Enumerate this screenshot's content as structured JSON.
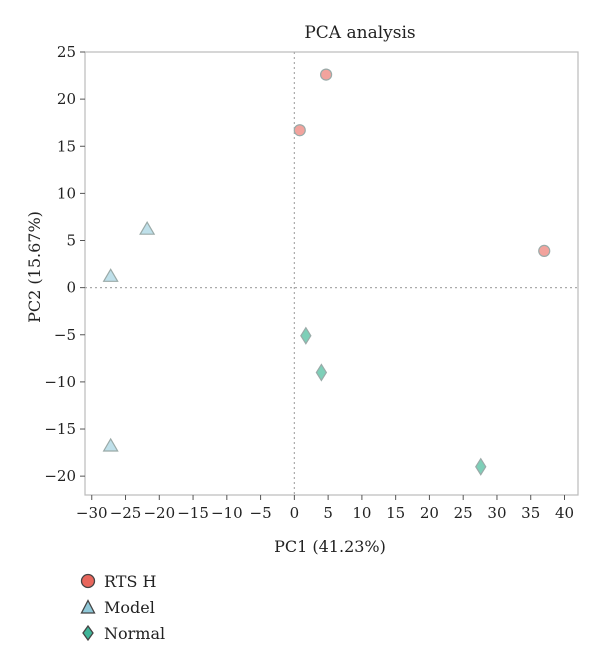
{
  "chart_data": {
    "type": "scatter",
    "title": "PCA analysis",
    "xlabel": "PC1 (41.23%)",
    "ylabel": "PC2 (15.67%)",
    "xlim": [
      -31,
      42
    ],
    "ylim": [
      -22,
      25
    ],
    "xticks": [
      -30,
      -25,
      -20,
      -15,
      -10,
      -5,
      0,
      5,
      10,
      15,
      20,
      25,
      30,
      35,
      40
    ],
    "yticks": [
      -20,
      -15,
      -10,
      -5,
      0,
      5,
      10,
      15,
      20,
      25
    ],
    "xtick_labels": [
      "−30",
      "−25",
      "−20",
      "−15",
      "−10",
      "−5",
      "0",
      "5",
      "10",
      "15",
      "20",
      "25",
      "30",
      "35",
      "40"
    ],
    "ytick_labels": [
      "−20",
      "−15",
      "−10",
      "−5",
      "0",
      "5",
      "10",
      "15",
      "20",
      "25"
    ],
    "grid": false,
    "zero_lines": true,
    "legend_position": "bottom-left",
    "series": [
      {
        "name": "RTS H",
        "marker": "circle",
        "fill": "#f2a39d",
        "legend_fill": "#e8665c",
        "points": [
          [
            0.8,
            16.7
          ],
          [
            4.7,
            22.6
          ],
          [
            37.0,
            3.9
          ]
        ]
      },
      {
        "name": "Model",
        "marker": "triangle",
        "fill": "#bfe0ea",
        "legend_fill": "#8fc8d8",
        "points": [
          [
            -21.8,
            6.2
          ],
          [
            -27.2,
            1.2
          ],
          [
            -27.2,
            -16.8
          ]
        ]
      },
      {
        "name": "Normal",
        "marker": "diamond",
        "fill": "#7ecfb8",
        "legend_fill": "#3fb598",
        "points": [
          [
            1.7,
            -5.1
          ],
          [
            4.0,
            -9.0
          ],
          [
            27.6,
            -19.0
          ]
        ]
      }
    ]
  }
}
